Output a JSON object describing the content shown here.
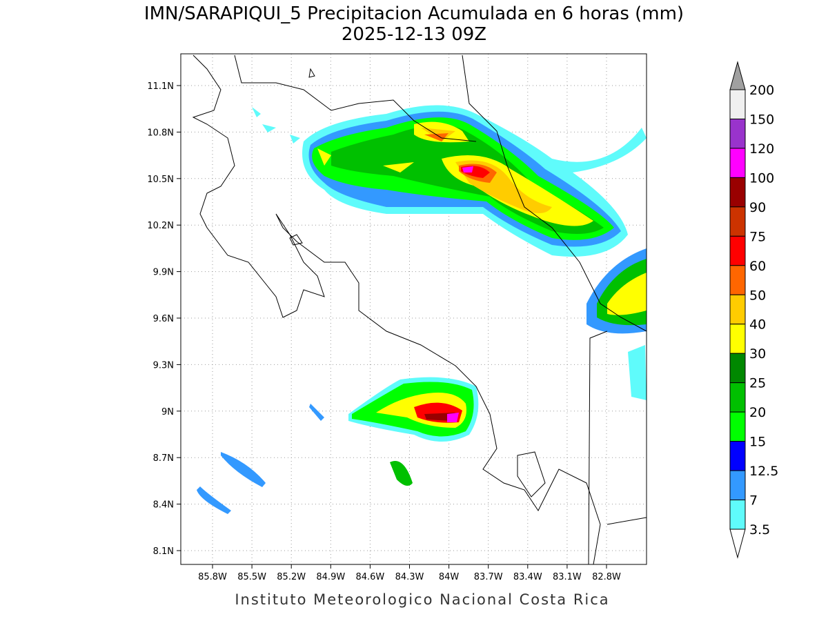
{
  "title": "IMN/SARAPIQUI_5 Precipitacion Acumulada en 6 horas (mm)",
  "subtitle": "2025-12-13 09Z",
  "map": {
    "x_ticks": [
      "85.8W",
      "85.5W",
      "85.2W",
      "84.9W",
      "84.6W",
      "84.3W",
      "84W",
      "83.7W",
      "83.4W",
      "83.1W",
      "82.8W"
    ],
    "y_ticks": [
      "11.1N",
      "10.8N",
      "10.5N",
      "10.2N",
      "9.9N",
      "9.6N",
      "9.3N",
      "9N",
      "8.7N",
      "8.4N",
      "8.1N"
    ]
  },
  "legend": {
    "levels": [
      200,
      150,
      120,
      100,
      90,
      75,
      60,
      50,
      40,
      30,
      25,
      20,
      15,
      12.5,
      7,
      3.5
    ],
    "colors": [
      "#f0f0f0",
      "#9933cc",
      "#ff00ff",
      "#990000",
      "#cc3300",
      "#ff0000",
      "#ff6600",
      "#ffcc00",
      "#ffff00",
      "#008800",
      "#00c000",
      "#00ff00",
      "#0000ff",
      "#3399ff",
      "#5ffbfb"
    ]
  },
  "footer": "Instituto Meteorologico Nacional Costa Rica"
}
